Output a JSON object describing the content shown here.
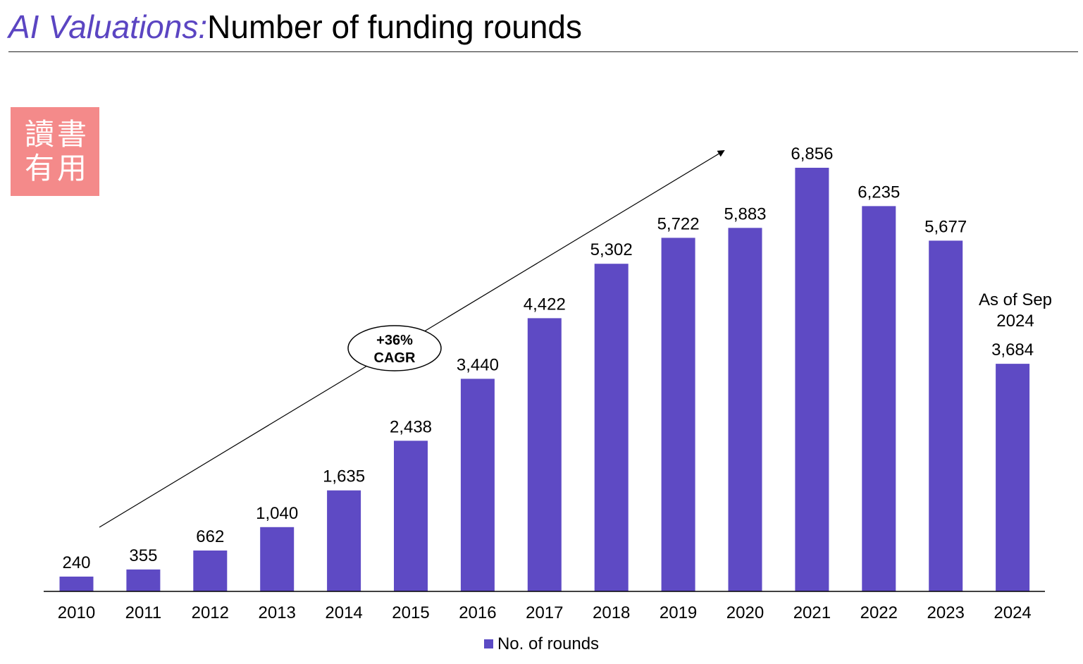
{
  "header": {
    "accent": "AI Valuations:",
    "title": "Number of funding rounds"
  },
  "stamp": {
    "label": "讀書有用",
    "color": "#f48a8a"
  },
  "colors": {
    "accent": "#5b45c2",
    "bar": "#5e4ac4"
  },
  "chart_data": {
    "type": "bar",
    "title": "Number of funding rounds",
    "categories": [
      "2010",
      "2011",
      "2012",
      "2013",
      "2014",
      "2015",
      "2016",
      "2017",
      "2018",
      "2019",
      "2020",
      "2021",
      "2022",
      "2023",
      "2024"
    ],
    "series": [
      {
        "name": "No. of rounds",
        "values": [
          240,
          355,
          662,
          1040,
          1635,
          2438,
          3440,
          4422,
          5302,
          5722,
          5883,
          6856,
          6235,
          5677,
          3684
        ],
        "labels": [
          "240",
          "355",
          "662",
          "1,040",
          "1,635",
          "2,438",
          "3,440",
          "4,422",
          "5,302",
          "5,722",
          "5,883",
          "6,856",
          "6,235",
          "5,677",
          "3,684"
        ]
      }
    ],
    "ylim": [
      0,
      6856
    ],
    "xlabel": "",
    "ylabel": "",
    "grid": false,
    "legend": "bottom-center",
    "annotations": {
      "cagr_line1": "+36%",
      "cagr_line2": "CAGR",
      "note_line1": "As of Sep",
      "note_line2": "2024"
    }
  }
}
